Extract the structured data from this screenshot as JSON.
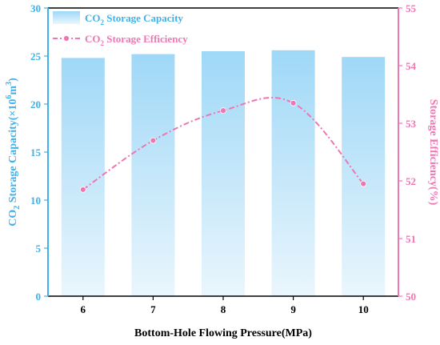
{
  "chart_data": {
    "type": "bar+line",
    "categories": [
      "6",
      "7",
      "8",
      "9",
      "10"
    ],
    "series": [
      {
        "name": "CO2 Storage Capacity",
        "type": "bar",
        "axis": "left",
        "values": [
          24.8,
          25.2,
          25.5,
          25.6,
          24.9
        ]
      },
      {
        "name": "CO2 Storage Efficiency",
        "type": "line",
        "axis": "right",
        "values": [
          51.85,
          52.7,
          53.22,
          53.35,
          51.95
        ]
      }
    ],
    "xlabel": "Bottom-Hole Flowing Pressure(MPa)",
    "ylabel_left": {
      "pre": "CO",
      "sub": "2",
      "mid": " Storage Capacity(×10",
      "sup1": "6",
      "mid2": "m",
      "sup2": "3",
      "post": ")"
    },
    "ylabel_right": "Storage Efficiency(%)",
    "legend": {
      "bar": {
        "pre": "CO",
        "sub": "2",
        "post": " Storage Capacity"
      },
      "line": {
        "pre": "CO",
        "sub": "2",
        "post": " Storage Efficiency"
      }
    },
    "legend_position": "top-left",
    "ylim_left": [
      0,
      30
    ],
    "yticks_left": [
      0,
      5,
      10,
      15,
      20,
      25,
      30
    ],
    "ylim_right": [
      50,
      55
    ],
    "yticks_right": [
      50,
      51,
      52,
      53,
      54,
      55
    ],
    "grid": false,
    "colors": {
      "left_axis": "#3fb2ea",
      "right_axis": "#ee77b3",
      "bar_top": "#9fd8f7",
      "bar_bottom": "#eaf6fd",
      "line": "#ee77b3"
    }
  }
}
